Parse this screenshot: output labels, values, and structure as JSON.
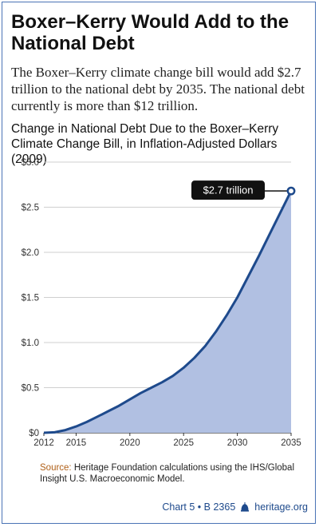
{
  "header": {
    "title": "Boxer–Kerry Would Add to the National Debt",
    "subtitle": "The Boxer–Kerry climate change bill would add $2.7 trillion to the national debt by 2035. The national debt currently is more than $12 trillion."
  },
  "chart_data": {
    "type": "area",
    "title": "Change in National Debt Due to the Boxer–Kerry Climate Change Bill, in Inflation-Adjusted Dollars (2009)",
    "xlabel": "",
    "ylabel": "",
    "xlim": [
      2012,
      2035
    ],
    "ylim": [
      0,
      3.0
    ],
    "x_ticks": [
      2012,
      2015,
      2020,
      2025,
      2030,
      2035
    ],
    "y_ticks": [
      0,
      0.5,
      1.0,
      1.5,
      2.0,
      2.5,
      3.0
    ],
    "y_tick_labels": [
      "$0",
      "$0.5",
      "$1.0",
      "$1.5",
      "$2.0",
      "$2.5",
      "$3.0"
    ],
    "grid": "horizontal",
    "series": [
      {
        "x": [
          2012,
          2013,
          2014,
          2015,
          2016,
          2017,
          2018,
          2019,
          2020,
          2021,
          2022,
          2023,
          2024,
          2025,
          2026,
          2027,
          2028,
          2029,
          2030,
          2031,
          2032,
          2033,
          2034,
          2035
        ],
        "values": [
          0.0,
          0.005,
          0.03,
          0.07,
          0.12,
          0.18,
          0.24,
          0.3,
          0.37,
          0.44,
          0.5,
          0.56,
          0.63,
          0.72,
          0.83,
          0.96,
          1.12,
          1.3,
          1.5,
          1.73,
          1.96,
          2.2,
          2.44,
          2.68
        ]
      }
    ],
    "colors": {
      "line": "#1e4a8c",
      "fill": "#b1c0e2",
      "grid": "#cfcfcf",
      "callout_bg": "#111111"
    },
    "annotation": {
      "x": 2035,
      "y": 2.68,
      "text": "$2.7 trillion"
    }
  },
  "footer": {
    "source_label": "Source:",
    "source_text": "Heritage Foundation calculations using the IHS/Global Insight U.S. Macroeconomic Model.",
    "chart_ref": "Chart 5 • B 2365",
    "site": "heritage.org",
    "logo_icon": "liberty-bell-icon"
  }
}
